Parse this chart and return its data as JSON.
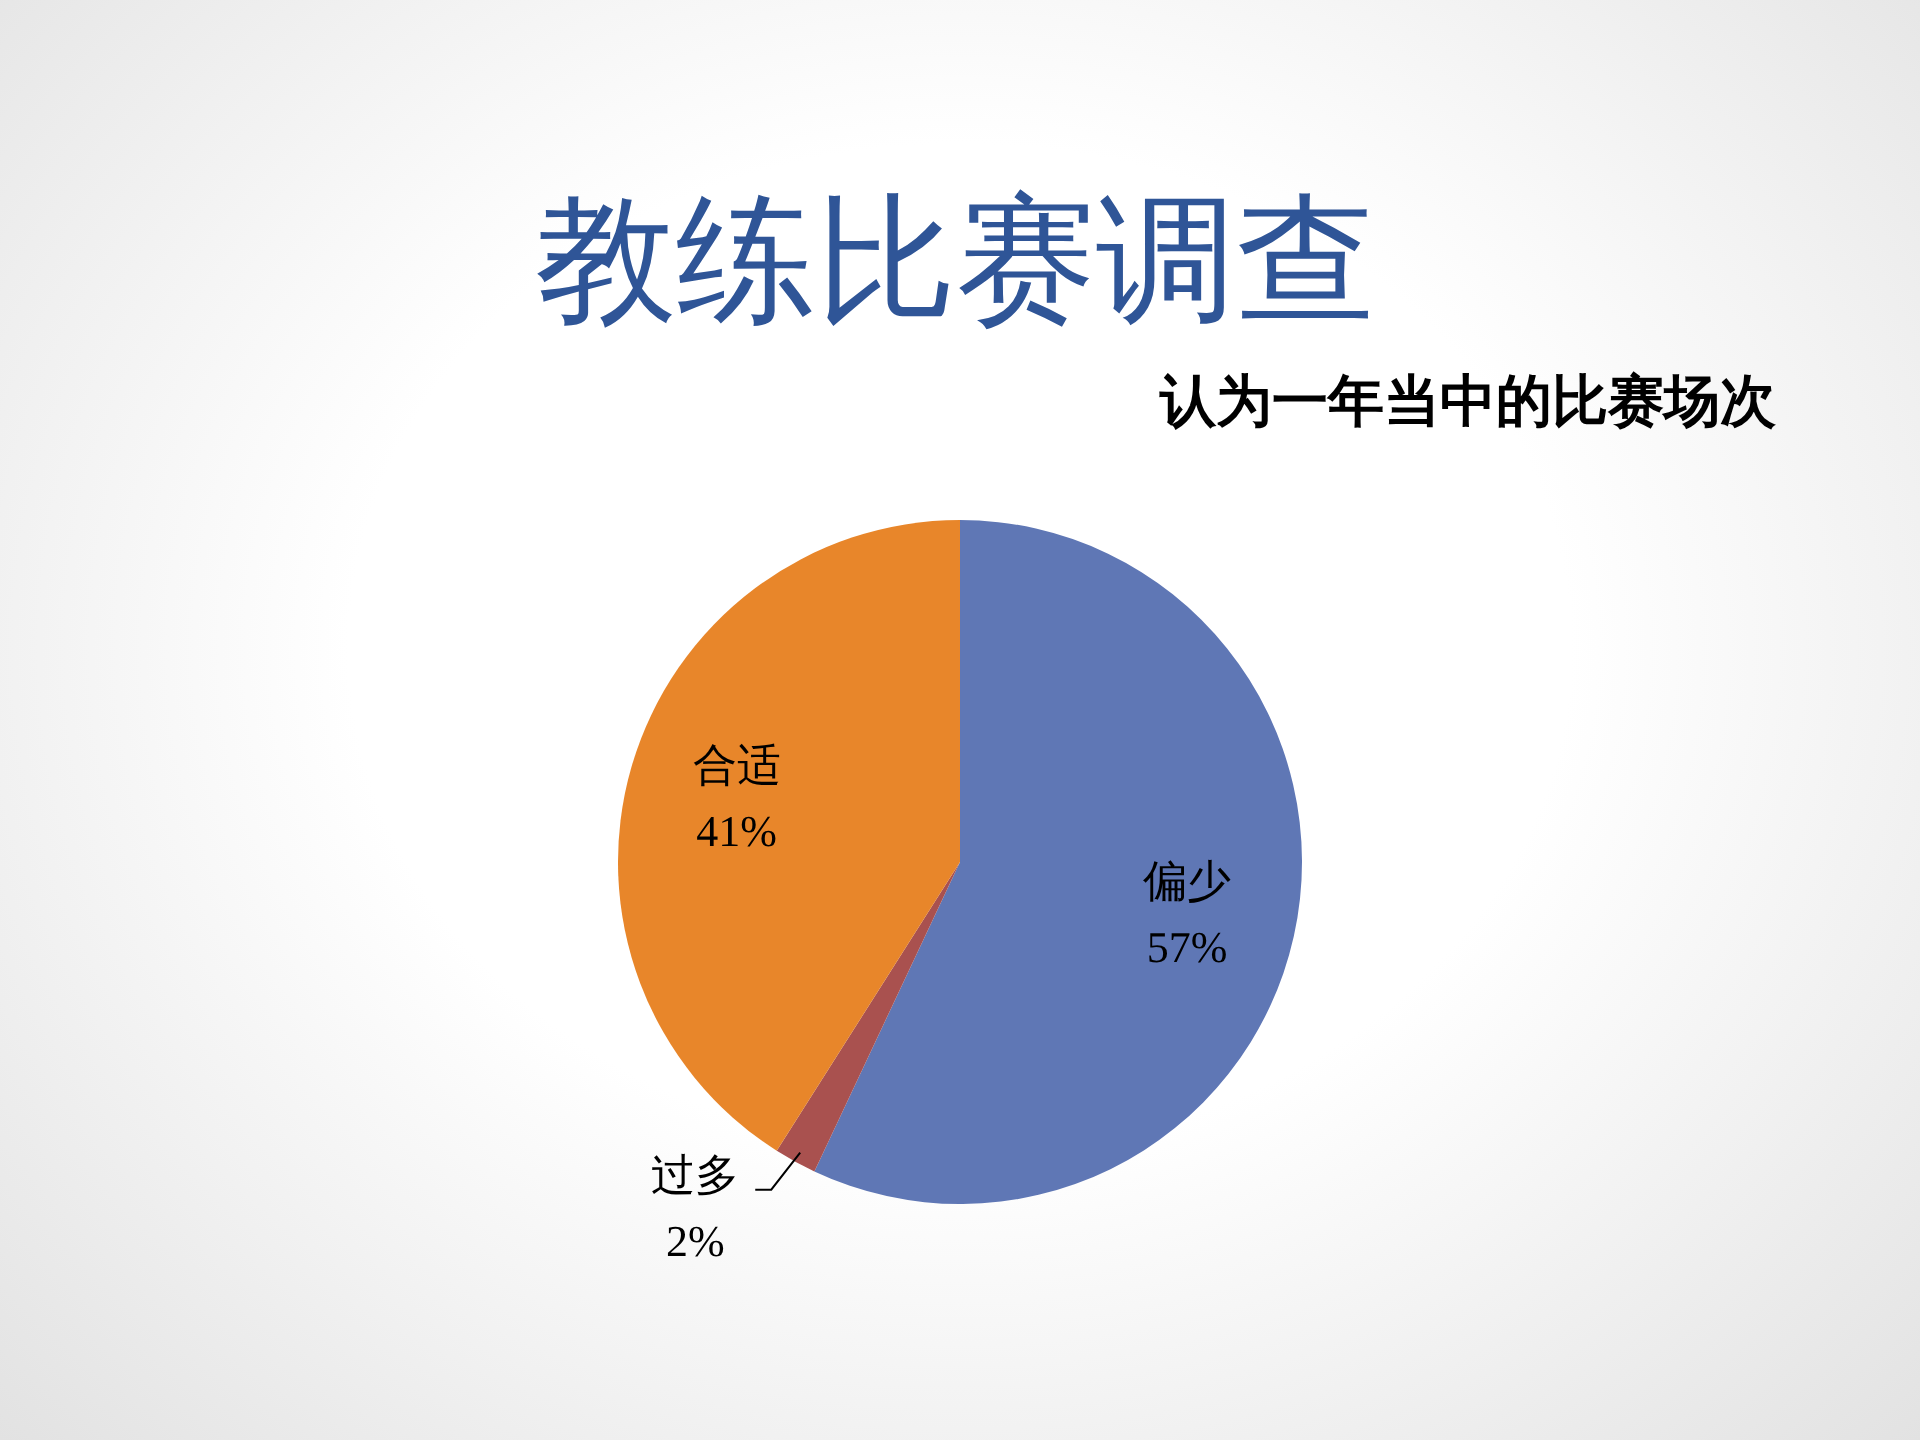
{
  "chart_data": {
    "type": "pie",
    "title": "教练比赛调查",
    "subtitle": "认为一年当中的比赛场次",
    "categories": [
      "偏少",
      "过多",
      "合适"
    ],
    "values": [
      57,
      2,
      41
    ],
    "colors": [
      "#5f77b5",
      "#a9514f",
      "#e8862a"
    ],
    "value_labels": [
      "57%",
      "2%",
      "41%"
    ]
  }
}
